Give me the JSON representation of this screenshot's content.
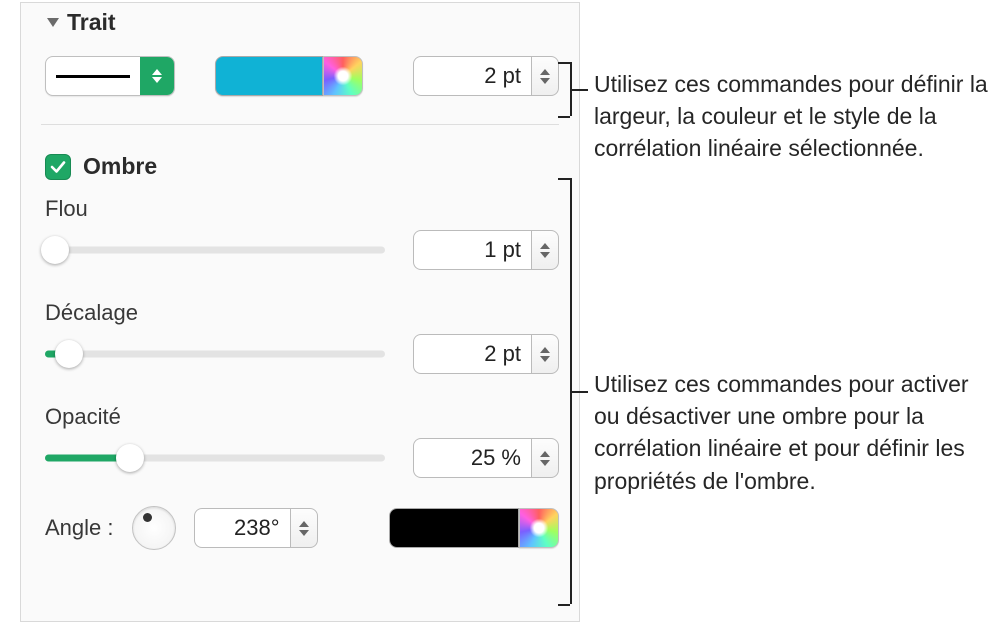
{
  "colors": {
    "accent": "#1fa765",
    "stroke_color": "#10b2d5",
    "shadow_color": "#000000",
    "panel_bg": "#fafafa",
    "panel_border": "#d9d9d9",
    "slider_track": "#e3e3e3",
    "slider_fill": "#1fa765"
  },
  "trait": {
    "title": "Trait",
    "width_value": "2 pt"
  },
  "shadow": {
    "title": "Ombre",
    "checked": true,
    "blur": {
      "label": "Flou",
      "value": "1 pt",
      "slider_percent": 3
    },
    "offset": {
      "label": "Décalage",
      "value": "2 pt",
      "slider_percent": 7
    },
    "opacity": {
      "label": "Opacité",
      "value": "25 %",
      "slider_percent": 25
    },
    "angle": {
      "label": "Angle :",
      "value": "238°",
      "degrees": 238
    }
  },
  "callouts": {
    "top": "Utilisez ces commandes pour définir la largeur, la couleur et le style de la corrélation linéaire sélectionnée.",
    "bottom": "Utilisez ces commandes pour activer ou désactiver une ombre pour la corrélation linéaire et pour définir les propriétés de l'ombre."
  }
}
